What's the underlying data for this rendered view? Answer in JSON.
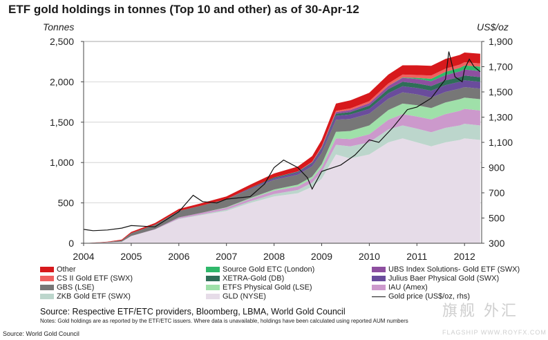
{
  "title": "ETF gold holdings in tonnes (Top 10 and other) as of 30-Apr-12",
  "left_axis_unit": "Tonnes",
  "right_axis_unit": "US$/oz",
  "source_line": "Source: Respective ETF/ETC providers, Bloomberg, LBMA, World Gold Council",
  "notes": "Notes: Gold holdings are as reported by the ETF/ETC issuers.  Where data is unavailable, holdings have been calculated using reported AUM numbers",
  "footer_source": "Source: World Gold Council",
  "watermark": "旗舰 外汇",
  "watermark_url": "FLAGSHIP  WWW.ROYFX.COM",
  "chart_data": {
    "type": "area",
    "x": [
      2004.0,
      2004.5,
      2004.8,
      2005.0,
      2005.5,
      2006.0,
      2006.5,
      2007.0,
      2007.5,
      2008.0,
      2008.5,
      2008.8,
      2009.0,
      2009.3,
      2009.6,
      2010.0,
      2010.4,
      2010.7,
      2011.0,
      2011.3,
      2011.6,
      2011.9,
      2012.0,
      2012.33
    ],
    "x_ticks": [
      "2004",
      "2005",
      "2006",
      "2007",
      "2008",
      "2009",
      "2010",
      "2011",
      "2012"
    ],
    "y_left_ticks": [
      "0",
      "500",
      "1,000",
      "1,500",
      "2,000",
      "2,500"
    ],
    "y_right_ticks": [
      "300",
      "500",
      "700",
      "900",
      "1,100",
      "1,300",
      "1,500",
      "1,700",
      "1,900"
    ],
    "ylim_left": [
      0,
      2500
    ],
    "ylim_right": [
      300,
      1900
    ],
    "series": [
      {
        "name": "GLD (NYSE)",
        "color": "#e6dce8",
        "values": [
          0,
          10,
          20,
          90,
          170,
          300,
          350,
          400,
          500,
          580,
          620,
          700,
          800,
          1100,
          1050,
          1100,
          1250,
          1300,
          1250,
          1200,
          1250,
          1280,
          1300,
          1280
        ]
      },
      {
        "name": "ZKB Gold ETF (SWX)",
        "color": "#bcd6cc",
        "values": [
          0,
          0,
          0,
          0,
          0,
          5,
          10,
          15,
          20,
          30,
          40,
          50,
          80,
          120,
          150,
          150,
          160,
          160,
          170,
          175,
          180,
          180,
          180,
          180
        ]
      },
      {
        "name": "IAU (Amex)",
        "color": "#cc99cc",
        "values": [
          0,
          0,
          0,
          0,
          5,
          15,
          20,
          25,
          30,
          40,
          45,
          50,
          60,
          80,
          90,
          100,
          120,
          140,
          150,
          160,
          170,
          180,
          185,
          185
        ]
      },
      {
        "name": "ETFS Physical Gold (LSE)",
        "color": "#9fe0a9",
        "values": [
          0,
          0,
          0,
          0,
          0,
          0,
          0,
          5,
          10,
          15,
          20,
          25,
          40,
          80,
          100,
          110,
          120,
          130,
          140,
          140,
          145,
          145,
          140,
          140
        ]
      },
      {
        "name": "GBS (LSE)",
        "color": "#777777",
        "values": [
          0,
          5,
          15,
          35,
          55,
          80,
          90,
          100,
          110,
          120,
          125,
          130,
          140,
          150,
          150,
          145,
          140,
          140,
          135,
          130,
          130,
          130,
          130,
          130
        ]
      },
      {
        "name": "Julius Baer Physical Gold (SWX)",
        "color": "#6a4c9c",
        "values": [
          0,
          0,
          0,
          0,
          0,
          0,
          0,
          0,
          10,
          20,
          25,
          30,
          40,
          50,
          55,
          60,
          70,
          75,
          80,
          85,
          85,
          85,
          85,
          85
        ]
      },
      {
        "name": "XETRA-Gold (DB)",
        "color": "#2f6e58",
        "values": [
          0,
          0,
          0,
          0,
          0,
          0,
          0,
          0,
          5,
          10,
          10,
          10,
          15,
          25,
          30,
          40,
          50,
          55,
          55,
          58,
          58,
          58,
          58,
          58
        ]
      },
      {
        "name": "UBS Index Solutions- Gold ETF (SWX)",
        "color": "#8e4fa0",
        "values": [
          0,
          0,
          0,
          0,
          0,
          0,
          0,
          0,
          0,
          0,
          5,
          10,
          15,
          20,
          25,
          30,
          40,
          50,
          55,
          60,
          65,
          70,
          75,
          75
        ]
      },
      {
        "name": "Source Gold ETC (London)",
        "color": "#2fb86a",
        "values": [
          0,
          0,
          0,
          0,
          0,
          0,
          0,
          0,
          0,
          0,
          0,
          0,
          0,
          0,
          0,
          0,
          0,
          5,
          15,
          30,
          40,
          45,
          50,
          55
        ]
      },
      {
        "name": "CS II Gold ETF (SWX)",
        "color": "#f06060",
        "values": [
          0,
          0,
          0,
          0,
          0,
          0,
          0,
          0,
          0,
          0,
          0,
          5,
          10,
          15,
          20,
          25,
          30,
          35,
          35,
          40,
          40,
          40,
          40,
          40
        ]
      },
      {
        "name": "Other",
        "color": "#d7191c",
        "values": [
          0,
          5,
          10,
          15,
          20,
          25,
          30,
          35,
          40,
          50,
          60,
          70,
          80,
          90,
          100,
          105,
          110,
          115,
          120,
          120,
          120,
          120,
          120,
          120
        ]
      }
    ],
    "line_series": {
      "name": "Gold price (US$/oz, rhs)",
      "color": "#111111",
      "x": [
        2004.0,
        2004.2,
        2004.5,
        2004.8,
        2005.0,
        2005.5,
        2006.0,
        2006.3,
        2006.5,
        2006.8,
        2007.0,
        2007.5,
        2007.8,
        2008.0,
        2008.2,
        2008.5,
        2008.7,
        2008.8,
        2009.0,
        2009.4,
        2009.7,
        2010.0,
        2010.2,
        2010.5,
        2010.8,
        2011.0,
        2011.3,
        2011.6,
        2011.67,
        2011.8,
        2011.95,
        2012.0,
        2012.1,
        2012.2,
        2012.33
      ],
      "y": [
        410,
        400,
        405,
        420,
        440,
        430,
        550,
        680,
        630,
        620,
        650,
        670,
        770,
        900,
        960,
        900,
        820,
        730,
        870,
        920,
        1000,
        1120,
        1100,
        1220,
        1360,
        1380,
        1450,
        1600,
        1820,
        1620,
        1580,
        1680,
        1760,
        1700,
        1660
      ]
    }
  }
}
